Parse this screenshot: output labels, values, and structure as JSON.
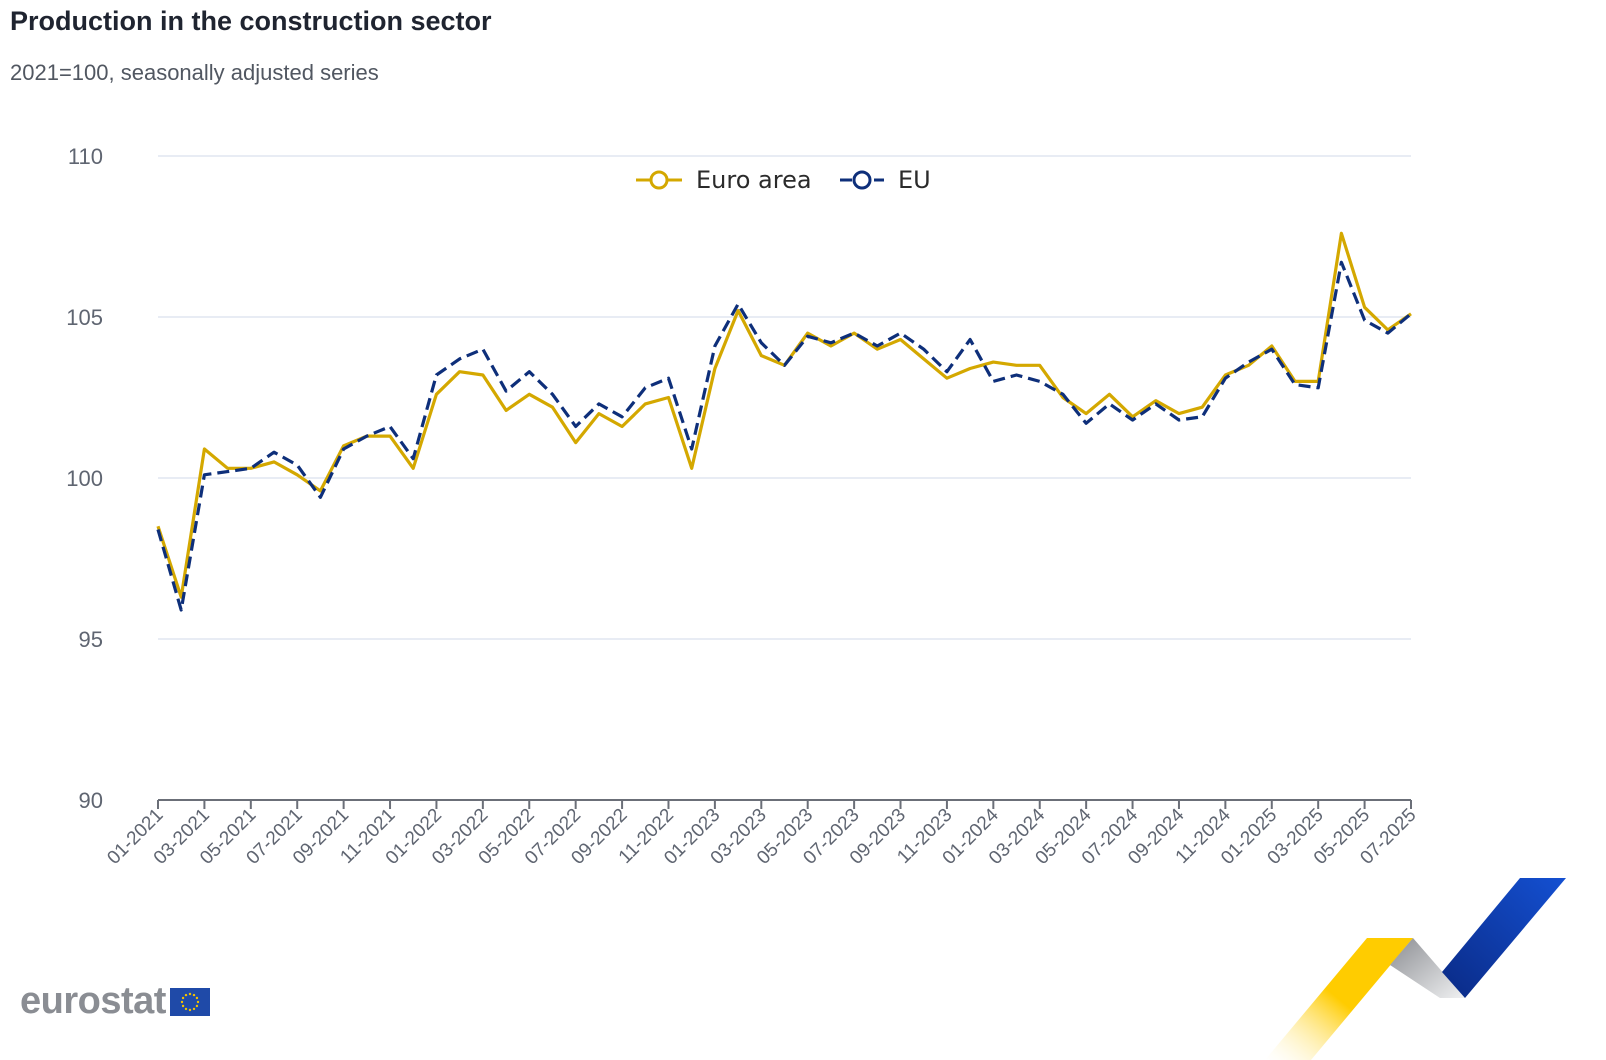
{
  "header": {
    "title": "Production in the construction sector",
    "subtitle": "2021=100, seasonally adjusted series"
  },
  "branding": {
    "logo_text": "eurostat",
    "logo_icon": "eu-flag-icon",
    "decoration": "eurostat-ribbon-graphic"
  },
  "colors": {
    "euro_area": "#d4a800",
    "eu": "#0e2f7a",
    "grid": "#e1e6f0",
    "axis": "#6b6f78"
  },
  "chart_data": {
    "type": "line",
    "title": "Production in the construction sector",
    "subtitle": "2021=100, seasonally adjusted series",
    "xlabel": "",
    "ylabel": "",
    "ylim": [
      90,
      110
    ],
    "yticks": [
      90,
      95,
      100,
      105,
      110
    ],
    "grid": true,
    "legend_position": "top-center",
    "x": [
      "01-2021",
      "02-2021",
      "03-2021",
      "04-2021",
      "05-2021",
      "06-2021",
      "07-2021",
      "08-2021",
      "09-2021",
      "10-2021",
      "11-2021",
      "12-2021",
      "01-2022",
      "02-2022",
      "03-2022",
      "04-2022",
      "05-2022",
      "06-2022",
      "07-2022",
      "08-2022",
      "09-2022",
      "10-2022",
      "11-2022",
      "12-2022",
      "01-2023",
      "02-2023",
      "03-2023",
      "04-2023",
      "05-2023",
      "06-2023",
      "07-2023",
      "08-2023",
      "09-2023",
      "10-2023",
      "11-2023",
      "12-2023",
      "01-2024",
      "02-2024",
      "03-2024",
      "04-2024",
      "05-2024",
      "06-2024",
      "07-2024",
      "08-2024",
      "09-2024",
      "10-2024",
      "11-2024",
      "12-2024",
      "01-2025",
      "02-2025",
      "03-2025",
      "04-2025",
      "05-2025",
      "06-2025",
      "07-2025"
    ],
    "xtick_labels": [
      "01-2021",
      "03-2021",
      "05-2021",
      "07-2021",
      "09-2021",
      "11-2021",
      "01-2022",
      "03-2022",
      "05-2022",
      "07-2022",
      "09-2022",
      "11-2022",
      "01-2023",
      "03-2023",
      "05-2023",
      "07-2023",
      "09-2023",
      "11-2023",
      "01-2024",
      "03-2024",
      "05-2024",
      "07-2024",
      "09-2024",
      "11-2024",
      "01-2025",
      "03-2025",
      "05-2025",
      "07-2025"
    ],
    "series": [
      {
        "name": "Euro area",
        "style": "solid",
        "values": [
          98.5,
          96.3,
          100.9,
          100.3,
          100.3,
          100.5,
          100.1,
          99.6,
          101.0,
          101.3,
          101.3,
          100.3,
          102.6,
          103.3,
          103.2,
          102.1,
          102.6,
          102.2,
          101.1,
          102.0,
          101.6,
          102.3,
          102.5,
          100.3,
          103.4,
          105.2,
          103.8,
          103.5,
          104.5,
          104.1,
          104.5,
          104.0,
          104.3,
          103.7,
          103.1,
          103.4,
          103.6,
          103.5,
          103.5,
          102.5,
          102.0,
          102.6,
          101.9,
          102.4,
          102.0,
          102.2,
          103.2,
          103.5,
          104.1,
          103.0,
          103.0,
          107.6,
          105.3,
          104.6,
          105.1
        ]
      },
      {
        "name": "EU",
        "style": "dashed",
        "values": [
          98.4,
          95.9,
          100.1,
          100.2,
          100.3,
          100.8,
          100.4,
          99.4,
          100.9,
          101.3,
          101.6,
          100.6,
          103.2,
          103.7,
          104.0,
          102.7,
          103.3,
          102.6,
          101.6,
          102.3,
          101.9,
          102.8,
          103.1,
          100.9,
          104.1,
          105.4,
          104.2,
          103.5,
          104.4,
          104.2,
          104.5,
          104.1,
          104.5,
          104.0,
          103.3,
          104.3,
          103.0,
          103.2,
          103.0,
          102.6,
          101.7,
          102.3,
          101.8,
          102.3,
          101.8,
          101.9,
          103.1,
          103.6,
          104.0,
          102.9,
          102.8,
          106.7,
          104.9,
          104.5,
          105.1
        ]
      }
    ]
  }
}
